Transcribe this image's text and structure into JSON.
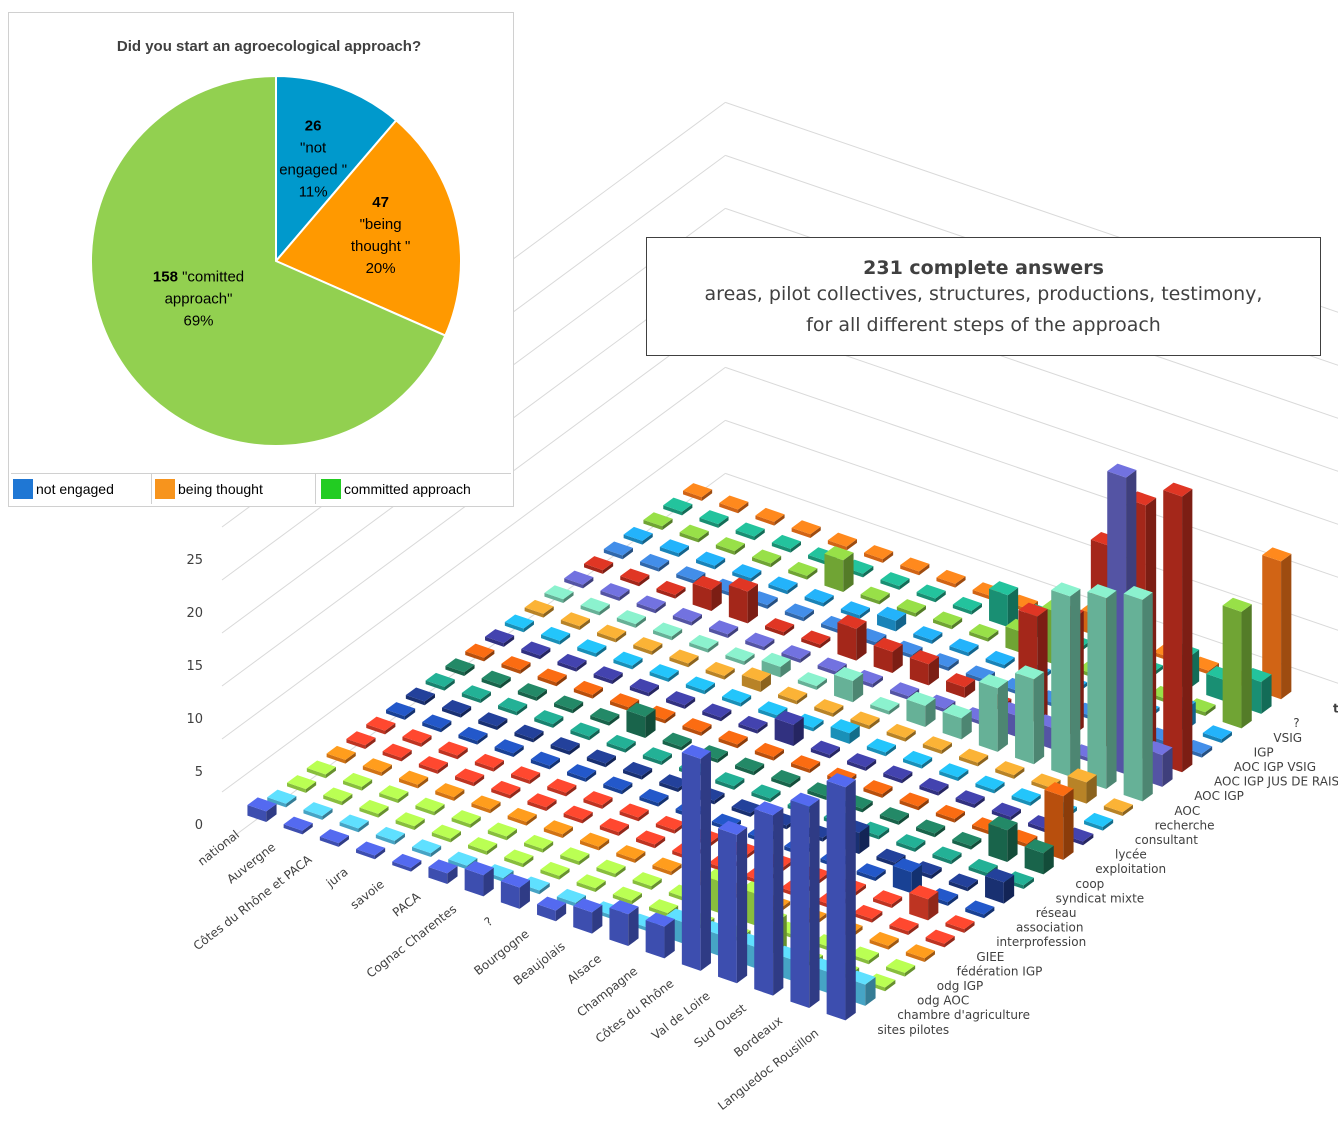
{
  "pie": {
    "title": "Did you start an agroecological approach?",
    "legend": [
      {
        "label": "not engaged",
        "color": "#1f77d4"
      },
      {
        "label": "being thought",
        "color": "#f7941d"
      },
      {
        "label": "committed approach",
        "color": "#22cc22"
      }
    ]
  },
  "summary": {
    "title": "231 complete answers",
    "line1": "areas, pilot collectives, structures, productions, testimony,",
    "line2": "for all different steps of the approach"
  },
  "chart_data": [
    {
      "type": "pie",
      "title": "Did you start an agroecological approach?",
      "slices": [
        {
          "count": "26",
          "label_lines": [
            "\"not",
            "engaged \"",
            "11%"
          ],
          "value": 26,
          "percent": "11%",
          "color": "#0099cc"
        },
        {
          "count": "47",
          "label_lines": [
            "\"being",
            "thought \"",
            "20%"
          ],
          "value": 47,
          "percent": "20%",
          "color": "#ff9900"
        },
        {
          "count": "158",
          "label_lines": [
            "\"comitted",
            "approach\"",
            "69%"
          ],
          "value": 158,
          "percent": "69%",
          "color": "#92d050"
        }
      ]
    },
    {
      "type": "bar",
      "subtype": "3d-bar-grid",
      "zlim": [
        0,
        25
      ],
      "z_ticks": [
        "0",
        "5",
        "10",
        "15",
        "20",
        "25"
      ],
      "x_categories": [
        "national",
        "Auvergne",
        "Côtes du Rhône et PACA",
        "jura",
        "savoie",
        "PACA",
        "Cognac Charentes",
        "?",
        "Bourgogne",
        "Beaujolais",
        "Alsace",
        "Champagne",
        "Côtes du Rhône",
        "Val de Loire",
        "Sud Ouest",
        "Bordeaux",
        "Languedoc Rousillon"
      ],
      "y_categories": [
        "sites pilotes",
        "chambre d'agriculture",
        "odg AOC",
        "odg IGP",
        "fédération IGP",
        "GIEE",
        "interprofession",
        "association",
        "réseau",
        "syndicat mixte",
        "coop",
        "exploitation",
        "lycée",
        "consultant",
        "recherche",
        "AOC",
        "AOC IGP",
        "AOC IGP JUS DE RAISIN",
        "AOC IGP VSIG",
        "IGP",
        "VSIG",
        "?",
        "testimony"
      ],
      "series_colors": [
        "#4b5fd6",
        "#55c8f0",
        "#a6e84a",
        "#a6e84a",
        "#ff8c1a",
        "#e8402a",
        "#e8402a",
        "#1f4fb4",
        "#1f3a8a",
        "#1f9e86",
        "#1f7a5c",
        "#e06010",
        "#3c3c9c",
        "#1fb0e0",
        "#e0a030",
        "#7cd8b8",
        "#6666c8",
        "#c83020",
        "#3c7fd0",
        "#1fa0e0",
        "#88c840",
        "#1fae8c",
        "#ff7a1a"
      ],
      "values": [
        [
          1,
          0,
          0,
          0,
          0,
          0,
          0,
          0,
          0,
          0,
          0,
          0,
          0,
          0,
          0,
          0,
          0,
          0,
          0,
          0,
          0,
          0,
          0
        ],
        [
          0,
          0,
          0,
          0,
          0,
          0,
          0,
          0,
          0,
          0,
          0,
          0,
          0,
          0,
          0,
          0,
          0,
          0,
          0,
          0,
          0,
          0,
          0
        ],
        [
          0,
          0,
          0,
          0,
          0,
          0,
          0,
          0,
          0,
          0,
          0,
          0,
          0,
          0,
          0,
          0,
          0,
          0,
          0,
          0,
          0,
          0,
          0
        ],
        [
          0,
          0,
          0,
          0,
          0,
          0,
          0,
          0,
          0,
          0,
          0,
          0,
          0,
          0,
          0,
          0,
          0,
          2,
          0,
          0,
          0,
          0,
          0
        ],
        [
          0,
          0,
          0,
          0,
          0,
          0,
          0,
          0,
          0,
          0,
          0,
          0,
          0,
          0,
          0,
          0,
          0,
          3,
          0,
          0,
          0,
          0,
          0
        ],
        [
          1,
          0,
          0,
          0,
          0,
          0,
          0,
          0,
          0,
          0,
          2,
          0,
          0,
          0,
          0,
          0,
          0,
          0,
          0,
          0,
          3,
          0,
          0
        ],
        [
          2,
          0,
          0,
          0,
          0,
          0,
          0,
          0,
          0,
          0,
          0,
          0,
          0,
          0,
          1,
          1,
          0,
          0,
          0,
          0,
          0,
          0,
          0
        ],
        [
          2,
          0,
          0,
          0,
          0,
          0,
          0,
          0,
          0,
          0,
          0,
          0,
          0,
          0,
          0,
          0,
          0,
          3,
          0,
          1,
          0,
          0,
          0
        ],
        [
          1,
          0,
          0,
          0,
          0,
          0,
          0,
          0,
          0,
          0,
          0,
          0,
          2,
          0,
          0,
          2,
          0,
          2,
          0,
          0,
          0,
          0,
          0
        ],
        [
          2,
          0,
          0,
          0,
          0,
          0,
          0,
          0,
          0,
          0,
          0,
          0,
          0,
          1,
          0,
          0,
          0,
          2,
          0,
          0,
          0,
          3,
          0
        ],
        [
          3,
          0,
          0,
          0,
          0,
          0,
          0,
          0,
          0,
          0,
          0,
          0,
          0,
          0,
          0,
          2,
          0,
          1,
          0,
          0,
          2,
          2,
          0
        ],
        [
          3,
          2,
          0,
          3,
          0,
          0,
          0,
          0,
          0,
          0,
          0,
          0,
          0,
          0,
          0,
          2,
          0,
          0,
          0,
          0,
          5,
          0,
          2
        ],
        [
          20,
          2,
          0,
          3,
          0,
          0,
          0,
          0,
          2,
          0,
          0,
          0,
          0,
          0,
          0,
          6,
          2,
          10,
          0,
          0,
          0,
          3,
          0
        ],
        [
          14,
          2,
          3,
          0,
          0,
          0,
          0,
          0,
          0,
          0,
          0,
          0,
          0,
          0,
          0,
          8,
          2,
          11,
          0,
          0,
          0,
          0,
          0
        ],
        [
          17,
          2,
          0,
          0,
          0,
          0,
          0,
          2,
          0,
          0,
          0,
          0,
          0,
          0,
          0,
          17,
          0,
          19,
          0,
          0,
          0,
          3,
          0
        ],
        [
          19,
          2,
          0,
          0,
          0,
          0,
          2,
          0,
          0,
          0,
          3,
          0,
          0,
          0,
          2,
          18,
          0,
          24,
          0,
          2,
          0,
          2,
          0
        ],
        [
          22,
          2,
          0,
          0,
          0,
          0,
          0,
          0,
          2,
          0,
          2,
          6,
          0,
          0,
          0,
          19,
          3,
          26,
          0,
          0,
          0,
          3,
          0
        ]
      ],
      "testimony_row": [
        0,
        0,
        0,
        0,
        0,
        0,
        0,
        0,
        0,
        0,
        0,
        0,
        0,
        0,
        0,
        0,
        0
      ],
      "extra_tall": [
        {
          "x": "Bordeaux",
          "y": "AOC IGP",
          "value": 28
        },
        {
          "x": "Languedoc Rousillon",
          "y": "VSIG",
          "value": 11
        },
        {
          "x": "Languedoc Rousillon",
          "y": "testimony",
          "value": 13
        }
      ]
    }
  ]
}
